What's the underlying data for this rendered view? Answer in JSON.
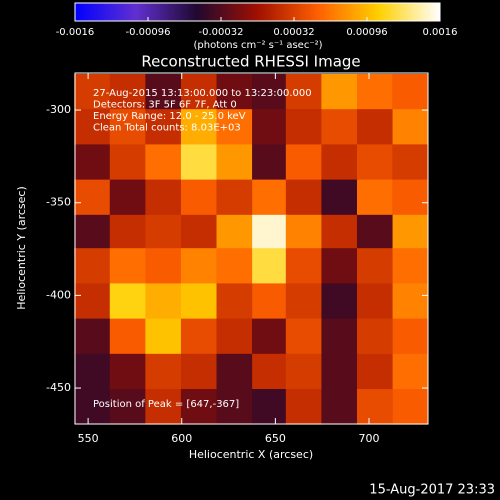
{
  "chart_data": {
    "type": "image",
    "title": "Reconstructed RHESSI Image",
    "xlabel": "Heliocentric X (arcsec)",
    "ylabel": "Heliocentric Y (arcsec)",
    "annotations": [
      "27-Aug-2015 13:13:00.000 to 13:23:00.000",
      "Detectors: 3F 5F 6F 7F, Att 0",
      "Energy Range: 12.0 - 25.0 keV",
      "Clean     Total counts: 8.03E+03"
    ],
    "peak_label": "Position of Peak = [647,-367]",
    "timestamp": "15-Aug-2017 23:33",
    "colorbar_label": "(photons cm⁻² s⁻¹ asec⁻²)",
    "clim": [
      -0.0016,
      0.0016
    ],
    "cticks": [
      -0.0016,
      -0.00096,
      -0.00032,
      0.00032,
      0.00096,
      0.0016
    ],
    "colormap": [
      "#0000ff",
      "#6030d0",
      "#200830",
      "#a01000",
      "#ff6000",
      "#ffd000",
      "#ffffff"
    ],
    "xlim": [
      543,
      731.5
    ],
    "ylim": [
      -469.4,
      -280
    ],
    "xticks": [
      550,
      600,
      650,
      700
    ],
    "yticks": [
      -300,
      -350,
      -400,
      -450
    ],
    "x": [
      552,
      571,
      590,
      609,
      628,
      647,
      665,
      684,
      703,
      722
    ],
    "y": [
      -290,
      -309,
      -328,
      -347,
      -366,
      -384,
      -403,
      -422,
      -441,
      -460
    ],
    "z": [
      [
        0.0003,
        0.0002,
        -0.0003,
        0.0002,
        -0.0002,
        -0.0003,
        0.0003,
        0.0008,
        0.0006,
        0.0005
      ],
      [
        0.0002,
        0.0004,
        0.0002,
        0.0009,
        0.0006,
        -0.0002,
        0.0002,
        0.0004,
        0.0002,
        0.0007
      ],
      [
        -0.0002,
        0.0003,
        0.0006,
        0.0012,
        0.0008,
        -0.0003,
        0.0005,
        0.0002,
        0.0004,
        0.0003
      ],
      [
        0.0004,
        -0.0002,
        0.0002,
        0.0005,
        0.0003,
        0.0006,
        0.0002,
        -0.0004,
        0.0006,
        0.0005
      ],
      [
        -0.0003,
        0.0002,
        0.0003,
        0.0002,
        0.0008,
        0.0015,
        0.0007,
        0.0002,
        -0.0003,
        0.0008
      ],
      [
        0.0003,
        0.0006,
        0.0005,
        0.0007,
        0.0006,
        0.0012,
        0.0004,
        -0.0002,
        0.0003,
        0.0006
      ],
      [
        0.0002,
        0.0011,
        0.0009,
        0.001,
        0.0003,
        0.0005,
        0.0003,
        -0.0004,
        0.0002,
        0.0007
      ],
      [
        -0.0003,
        0.0005,
        0.001,
        0.0004,
        0.0002,
        -0.0002,
        0.0004,
        -0.0003,
        0.0003,
        0.0005
      ],
      [
        -0.0004,
        -0.0002,
        0.0003,
        0.0002,
        -0.0003,
        0.0002,
        0.0003,
        -0.0003,
        0.0002,
        0.0006
      ],
      [
        -0.0004,
        -0.0003,
        0.0002,
        -0.0002,
        -0.0003,
        -0.0004,
        0.0002,
        -0.0003,
        0.0004,
        0.0005
      ]
    ]
  }
}
